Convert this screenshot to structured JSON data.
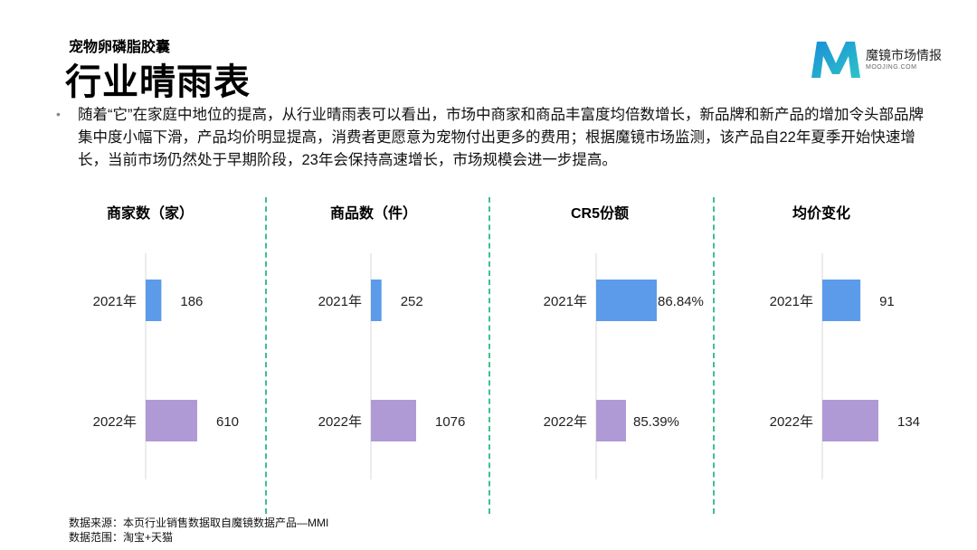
{
  "header": {
    "subtitle": "宠物卵磷脂胶囊",
    "title": "行业晴雨表"
  },
  "logo": {
    "text": "魔镜市场情报",
    "sub": "MOOJING.COM",
    "colors": [
      "#1a8fd6",
      "#2ec3c9"
    ]
  },
  "description": "随着“它”在家庭中地位的提高，从行业晴雨表可以看出，市场中商家和商品丰富度均倍数增长，新品牌和新产品的增加令头部品牌集中度小幅下滑，产品均价明显提高，消费者更愿意为宠物付出更多的费用；根据魔镜市场监测，该产品自22年夏季开始快速增长，当前市场仍然处于早期阶段，23年会保持高速增长，市场规模会进一步提高。",
  "footer": {
    "source": "数据来源：本页行业销售数据取自魔镜数据产品—MMI",
    "scope": "数据范围：淘宝+天猫"
  },
  "colors": {
    "bar_2021": "#5b9bea",
    "bar_2022": "#b09ad6",
    "axis": "#d9d9d9",
    "divider": "#3fc08a"
  },
  "chart_data": [
    {
      "type": "bar",
      "title": "商家数（家）",
      "categories": [
        "2021年",
        "2022年"
      ],
      "values": [
        186,
        610
      ],
      "labels": [
        "186",
        "610"
      ],
      "xlim": [
        0,
        1000
      ]
    },
    {
      "type": "bar",
      "title": "商品数（件）",
      "categories": [
        "2021年",
        "2022年"
      ],
      "values": [
        252,
        1076
      ],
      "labels": [
        "252",
        "1076"
      ],
      "xlim": [
        0,
        2000
      ]
    },
    {
      "type": "bar",
      "title": "CR5份额",
      "categories": [
        "2021年",
        "2022年"
      ],
      "values": [
        86.84,
        85.39
      ],
      "labels": [
        "86.84%",
        "85.39%"
      ],
      "xlim": [
        0,
        100
      ],
      "relative_max": true
    },
    {
      "type": "bar",
      "title": "均价变化",
      "categories": [
        "2021年",
        "2022年"
      ],
      "values": [
        91,
        134
      ],
      "labels": [
        "91",
        "134"
      ],
      "xlim": [
        0,
        200
      ]
    }
  ]
}
